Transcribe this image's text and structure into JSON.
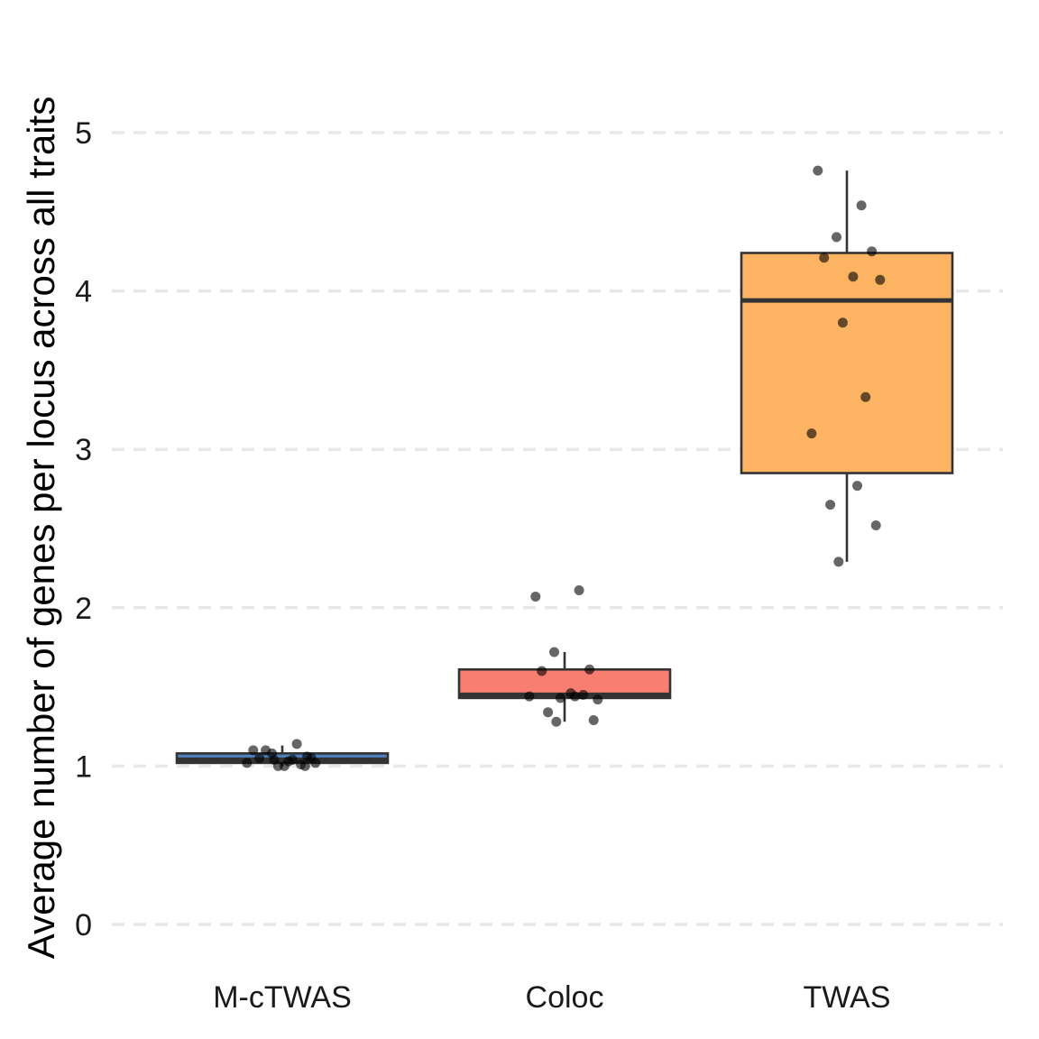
{
  "chart_data": {
    "type": "box",
    "title": "",
    "xlabel": "",
    "ylabel": "Average number of genes per locus across all traits",
    "ylim": [
      -0.2,
      5.8
    ],
    "yticks": [
      0,
      1,
      2,
      3,
      4,
      5
    ],
    "grid": "horizontal-dashed",
    "legend": "none",
    "categories": [
      "M-cTWAS",
      "Coloc",
      "TWAS"
    ],
    "series": [
      {
        "name": "M-cTWAS",
        "color": "#4f81bd",
        "box": {
          "whisker_low": 1.0,
          "q1": 1.02,
          "median": 1.04,
          "q3": 1.08,
          "whisker_high": 1.13
        },
        "points": [
          1.1,
          1.14,
          1.08,
          1.06,
          1.05,
          1.03,
          1.02,
          1.0,
          1.01,
          1.02,
          1.04,
          1.1,
          1.05,
          1.04,
          1.0,
          1.0
        ]
      },
      {
        "name": "Coloc",
        "color": "#f87e71",
        "box": {
          "whisker_low": 1.28,
          "q1": 1.43,
          "median": 1.45,
          "q3": 1.61,
          "whisker_high": 1.72
        },
        "points": [
          2.07,
          2.11,
          1.72,
          1.61,
          1.6,
          1.46,
          1.42,
          1.43,
          1.45,
          1.44,
          1.44,
          1.34,
          1.29,
          1.28
        ]
      },
      {
        "name": "TWAS",
        "color": "#fdb462",
        "box": {
          "whisker_low": 2.29,
          "q1": 2.85,
          "median": 3.94,
          "q3": 4.24,
          "whisker_high": 4.76
        },
        "points": [
          4.76,
          4.54,
          4.34,
          4.25,
          4.21,
          4.09,
          4.07,
          3.8,
          3.33,
          3.1,
          2.77,
          2.65,
          2.52,
          2.29
        ]
      }
    ]
  }
}
